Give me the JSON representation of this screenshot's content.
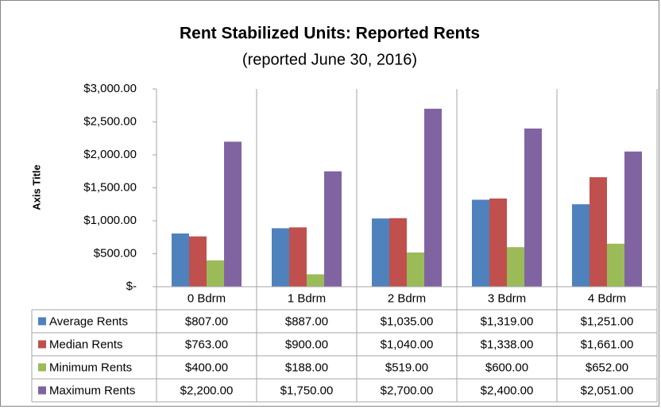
{
  "chart_data": {
    "type": "bar",
    "title": "Rent Stabilized Units: Reported Rents",
    "subtitle": "(reported June 30, 2016)",
    "y_label": "Axis Title",
    "categories": [
      "0 Bdrm",
      "1 Bdrm",
      "2 Bdrm",
      "3 Bdrm",
      "4 Bdrm"
    ],
    "series": [
      {
        "name": "Average Rents",
        "color": "#4f81bd",
        "values": [
          807,
          887,
          1035,
          1319,
          1251
        ],
        "value_labels": [
          "$807.00",
          "$887.00",
          "$1,035.00",
          "$1,319.00",
          "$1,251.00"
        ]
      },
      {
        "name": "Median Rents",
        "color": "#c0504d",
        "values": [
          763,
          900,
          1040,
          1338,
          1661
        ],
        "value_labels": [
          "$763.00",
          "$900.00",
          "$1,040.00",
          "$1,338.00",
          "$1,661.00"
        ]
      },
      {
        "name": "Minimum Rents",
        "color": "#9bbb59",
        "values": [
          400,
          188,
          519,
          600,
          652
        ],
        "value_labels": [
          "$400.00",
          "$188.00",
          "$519.00",
          "$600.00",
          "$652.00"
        ]
      },
      {
        "name": "Maximum Rents",
        "color": "#8064a2",
        "values": [
          2200,
          1750,
          2700,
          2400,
          2051
        ],
        "value_labels": [
          "$2,200.00",
          "$1,750.00",
          "$2,700.00",
          "$2,400.00",
          "$2,051.00"
        ]
      }
    ],
    "ylim": [
      0,
      3000
    ],
    "yticks": [
      {
        "value": 0,
        "label": "$-"
      },
      {
        "value": 500,
        "label": "$500.00"
      },
      {
        "value": 1000,
        "label": "$1,000.00"
      },
      {
        "value": 1500,
        "label": "$1,500.00"
      },
      {
        "value": 2000,
        "label": "$2,000.00"
      },
      {
        "value": 2500,
        "label": "$2,500.00"
      },
      {
        "value": 3000,
        "label": "$3,000.00"
      }
    ],
    "grid": false
  }
}
